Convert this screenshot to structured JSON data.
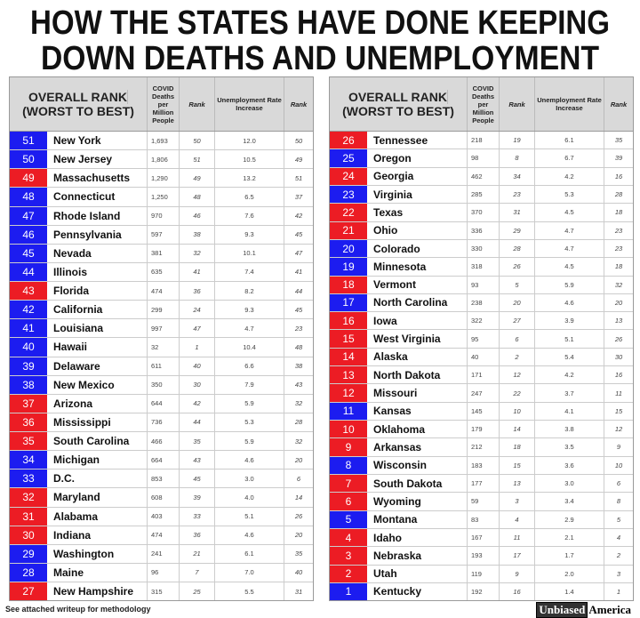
{
  "title": [
    "HOW THE STATES HAVE DONE KEEPING",
    "DOWN DEATHS AND UNEMPLOYMENT"
  ],
  "headers": {
    "overall": [
      "OVERALL RANK",
      "(WORST TO BEST)"
    ],
    "deaths": "COVID Deaths per Million People",
    "rank": "Rank",
    "unemployment": "Unemployment Rate Increase"
  },
  "colors": {
    "blue": "#1c1cf0",
    "red": "#ec1c24"
  },
  "tables": [
    {
      "rows": [
        {
          "rank": "51",
          "state": "New York",
          "deaths": "1,693",
          "deaths_rank": "50",
          "unemployment": "12.0",
          "unemployment_rank": "50",
          "color": "blue"
        },
        {
          "rank": "50",
          "state": "New Jersey",
          "deaths": "1,806",
          "deaths_rank": "51",
          "unemployment": "10.5",
          "unemployment_rank": "49",
          "color": "blue"
        },
        {
          "rank": "49",
          "state": "Massachusetts",
          "deaths": "1,290",
          "deaths_rank": "49",
          "unemployment": "13.2",
          "unemployment_rank": "51",
          "color": "red"
        },
        {
          "rank": "48",
          "state": "Connecticut",
          "deaths": "1,250",
          "deaths_rank": "48",
          "unemployment": "6.5",
          "unemployment_rank": "37",
          "color": "blue"
        },
        {
          "rank": "47",
          "state": "Rhode Island",
          "deaths": "970",
          "deaths_rank": "46",
          "unemployment": "7.6",
          "unemployment_rank": "42",
          "color": "blue"
        },
        {
          "rank": "46",
          "state": "Pennsylvania",
          "deaths": "597",
          "deaths_rank": "38",
          "unemployment": "9.3",
          "unemployment_rank": "45",
          "color": "blue"
        },
        {
          "rank": "45",
          "state": "Nevada",
          "deaths": "381",
          "deaths_rank": "32",
          "unemployment": "10.1",
          "unemployment_rank": "47",
          "color": "blue"
        },
        {
          "rank": "44",
          "state": "Illinois",
          "deaths": "635",
          "deaths_rank": "41",
          "unemployment": "7.4",
          "unemployment_rank": "41",
          "color": "blue"
        },
        {
          "rank": "43",
          "state": "Florida",
          "deaths": "474",
          "deaths_rank": "36",
          "unemployment": "8.2",
          "unemployment_rank": "44",
          "color": "red"
        },
        {
          "rank": "42",
          "state": "California",
          "deaths": "299",
          "deaths_rank": "24",
          "unemployment": "9.3",
          "unemployment_rank": "45",
          "color": "blue"
        },
        {
          "rank": "41",
          "state": "Louisiana",
          "deaths": "997",
          "deaths_rank": "47",
          "unemployment": "4.7",
          "unemployment_rank": "23",
          "color": "blue"
        },
        {
          "rank": "40",
          "state": "Hawaii",
          "deaths": "32",
          "deaths_rank": "1",
          "unemployment": "10.4",
          "unemployment_rank": "48",
          "color": "blue"
        },
        {
          "rank": "39",
          "state": "Delaware",
          "deaths": "611",
          "deaths_rank": "40",
          "unemployment": "6.6",
          "unemployment_rank": "38",
          "color": "blue"
        },
        {
          "rank": "38",
          "state": "New Mexico",
          "deaths": "350",
          "deaths_rank": "30",
          "unemployment": "7.9",
          "unemployment_rank": "43",
          "color": "blue"
        },
        {
          "rank": "37",
          "state": "Arizona",
          "deaths": "644",
          "deaths_rank": "42",
          "unemployment": "5.9",
          "unemployment_rank": "32",
          "color": "red"
        },
        {
          "rank": "36",
          "state": "Mississippi",
          "deaths": "736",
          "deaths_rank": "44",
          "unemployment": "5.3",
          "unemployment_rank": "28",
          "color": "red"
        },
        {
          "rank": "35",
          "state": "South Carolina",
          "deaths": "466",
          "deaths_rank": "35",
          "unemployment": "5.9",
          "unemployment_rank": "32",
          "color": "red"
        },
        {
          "rank": "34",
          "state": "Michigan",
          "deaths": "664",
          "deaths_rank": "43",
          "unemployment": "4.6",
          "unemployment_rank": "20",
          "color": "blue"
        },
        {
          "rank": "33",
          "state": "D.C.",
          "deaths": "853",
          "deaths_rank": "45",
          "unemployment": "3.0",
          "unemployment_rank": "6",
          "color": "blue"
        },
        {
          "rank": "32",
          "state": "Maryland",
          "deaths": "608",
          "deaths_rank": "39",
          "unemployment": "4.0",
          "unemployment_rank": "14",
          "color": "red"
        },
        {
          "rank": "31",
          "state": "Alabama",
          "deaths": "403",
          "deaths_rank": "33",
          "unemployment": "5.1",
          "unemployment_rank": "26",
          "color": "red"
        },
        {
          "rank": "30",
          "state": "Indiana",
          "deaths": "474",
          "deaths_rank": "36",
          "unemployment": "4.6",
          "unemployment_rank": "20",
          "color": "red"
        },
        {
          "rank": "29",
          "state": "Washington",
          "deaths": "241",
          "deaths_rank": "21",
          "unemployment": "6.1",
          "unemployment_rank": "35",
          "color": "blue"
        },
        {
          "rank": "28",
          "state": "Maine",
          "deaths": "96",
          "deaths_rank": "7",
          "unemployment": "7.0",
          "unemployment_rank": "40",
          "color": "blue"
        },
        {
          "rank": "27",
          "state": "New Hampshire",
          "deaths": "315",
          "deaths_rank": "25",
          "unemployment": "5.5",
          "unemployment_rank": "31",
          "color": "red"
        }
      ]
    },
    {
      "rows": [
        {
          "rank": "26",
          "state": "Tennessee",
          "deaths": "218",
          "deaths_rank": "19",
          "unemployment": "6.1",
          "unemployment_rank": "35",
          "color": "red"
        },
        {
          "rank": "25",
          "state": "Oregon",
          "deaths": "98",
          "deaths_rank": "8",
          "unemployment": "6.7",
          "unemployment_rank": "39",
          "color": "blue"
        },
        {
          "rank": "24",
          "state": "Georgia",
          "deaths": "462",
          "deaths_rank": "34",
          "unemployment": "4.2",
          "unemployment_rank": "16",
          "color": "red"
        },
        {
          "rank": "23",
          "state": "Virginia",
          "deaths": "285",
          "deaths_rank": "23",
          "unemployment": "5.3",
          "unemployment_rank": "28",
          "color": "blue"
        },
        {
          "rank": "22",
          "state": "Texas",
          "deaths": "370",
          "deaths_rank": "31",
          "unemployment": "4.5",
          "unemployment_rank": "18",
          "color": "red"
        },
        {
          "rank": "21",
          "state": "Ohio",
          "deaths": "336",
          "deaths_rank": "29",
          "unemployment": "4.7",
          "unemployment_rank": "23",
          "color": "red"
        },
        {
          "rank": "20",
          "state": "Colorado",
          "deaths": "330",
          "deaths_rank": "28",
          "unemployment": "4.7",
          "unemployment_rank": "23",
          "color": "blue"
        },
        {
          "rank": "19",
          "state": "Minnesota",
          "deaths": "318",
          "deaths_rank": "26",
          "unemployment": "4.5",
          "unemployment_rank": "18",
          "color": "blue"
        },
        {
          "rank": "18",
          "state": "Vermont",
          "deaths": "93",
          "deaths_rank": "5",
          "unemployment": "5.9",
          "unemployment_rank": "32",
          "color": "red"
        },
        {
          "rank": "17",
          "state": "North Carolina",
          "deaths": "238",
          "deaths_rank": "20",
          "unemployment": "4.6",
          "unemployment_rank": "20",
          "color": "blue"
        },
        {
          "rank": "16",
          "state": "Iowa",
          "deaths": "322",
          "deaths_rank": "27",
          "unemployment": "3.9",
          "unemployment_rank": "13",
          "color": "red"
        },
        {
          "rank": "15",
          "state": "West Virginia",
          "deaths": "95",
          "deaths_rank": "6",
          "unemployment": "5.1",
          "unemployment_rank": "26",
          "color": "red"
        },
        {
          "rank": "14",
          "state": "Alaska",
          "deaths": "40",
          "deaths_rank": "2",
          "unemployment": "5.4",
          "unemployment_rank": "30",
          "color": "red"
        },
        {
          "rank": "13",
          "state": "North Dakota",
          "deaths": "171",
          "deaths_rank": "12",
          "unemployment": "4.2",
          "unemployment_rank": "16",
          "color": "red"
        },
        {
          "rank": "12",
          "state": "Missouri",
          "deaths": "247",
          "deaths_rank": "22",
          "unemployment": "3.7",
          "unemployment_rank": "11",
          "color": "red"
        },
        {
          "rank": "11",
          "state": "Kansas",
          "deaths": "145",
          "deaths_rank": "10",
          "unemployment": "4.1",
          "unemployment_rank": "15",
          "color": "blue"
        },
        {
          "rank": "10",
          "state": "Oklahoma",
          "deaths": "179",
          "deaths_rank": "14",
          "unemployment": "3.8",
          "unemployment_rank": "12",
          "color": "red"
        },
        {
          "rank": "9",
          "state": "Arkansas",
          "deaths": "212",
          "deaths_rank": "18",
          "unemployment": "3.5",
          "unemployment_rank": "9",
          "color": "red"
        },
        {
          "rank": "8",
          "state": "Wisconsin",
          "deaths": "183",
          "deaths_rank": "15",
          "unemployment": "3.6",
          "unemployment_rank": "10",
          "color": "blue"
        },
        {
          "rank": "7",
          "state": "South Dakota",
          "deaths": "177",
          "deaths_rank": "13",
          "unemployment": "3.0",
          "unemployment_rank": "6",
          "color": "red"
        },
        {
          "rank": "6",
          "state": "Wyoming",
          "deaths": "59",
          "deaths_rank": "3",
          "unemployment": "3.4",
          "unemployment_rank": "8",
          "color": "red"
        },
        {
          "rank": "5",
          "state": "Montana",
          "deaths": "83",
          "deaths_rank": "4",
          "unemployment": "2.9",
          "unemployment_rank": "5",
          "color": "blue"
        },
        {
          "rank": "4",
          "state": "Idaho",
          "deaths": "167",
          "deaths_rank": "11",
          "unemployment": "2.1",
          "unemployment_rank": "4",
          "color": "red"
        },
        {
          "rank": "3",
          "state": "Nebraska",
          "deaths": "193",
          "deaths_rank": "17",
          "unemployment": "1.7",
          "unemployment_rank": "2",
          "color": "red"
        },
        {
          "rank": "2",
          "state": "Utah",
          "deaths": "119",
          "deaths_rank": "9",
          "unemployment": "2.0",
          "unemployment_rank": "3",
          "color": "red"
        },
        {
          "rank": "1",
          "state": "Kentucky",
          "deaths": "192",
          "deaths_rank": "16",
          "unemployment": "1.4",
          "unemployment_rank": "1",
          "color": "blue"
        }
      ]
    }
  ],
  "footer": "See attached writeup for methodology",
  "brand": [
    "Unbiased",
    "America"
  ]
}
